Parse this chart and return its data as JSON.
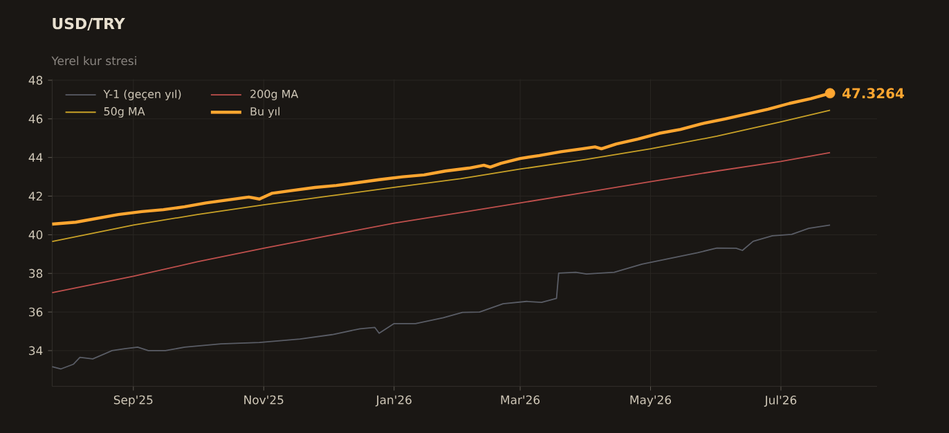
{
  "chart_data": {
    "type": "line",
    "title": "USD/TRY",
    "subtitle": "Yerel kur stresi",
    "xlim": [
      "2025-07-25",
      "2026-08-15"
    ],
    "ylim": [
      32.15,
      48.05
    ],
    "xticks": [
      {
        "value": "2025-09-01",
        "label": "Sep'25"
      },
      {
        "value": "2025-11-01",
        "label": "Nov'25"
      },
      {
        "value": "2026-01-01",
        "label": "Jan'26"
      },
      {
        "value": "2026-03-01",
        "label": "Mar'26"
      },
      {
        "value": "2026-05-01",
        "label": "May'26"
      },
      {
        "value": "2026-07-01",
        "label": "Jul'26"
      }
    ],
    "yticks": [
      34,
      36,
      38,
      40,
      42,
      44,
      46,
      48
    ],
    "grid": true,
    "legend": "top left",
    "annotations": [
      {
        "text": "47.3264",
        "x": "2026-07-24",
        "y": 47.3264
      }
    ],
    "series": [
      {
        "name": "Y-1 (geçen yıl)",
        "color": "#5a5d66",
        "x": [
          "2025-07-25",
          "2025-07-29",
          "2025-08-04",
          "2025-08-07",
          "2025-08-13",
          "2025-08-22",
          "2025-08-28",
          "2025-09-03",
          "2025-09-08",
          "2025-09-16",
          "2025-09-25",
          "2025-10-12",
          "2025-10-30",
          "2025-11-18",
          "2025-12-03",
          "2025-12-16",
          "2025-12-23",
          "2025-12-25",
          "2026-01-01",
          "2026-01-11",
          "2026-01-24",
          "2026-02-02",
          "2026-02-10",
          "2026-02-21",
          "2026-03-04",
          "2026-03-11",
          "2026-03-18",
          "2026-03-19",
          "2026-03-27",
          "2026-04-01",
          "2026-04-14",
          "2026-04-27",
          "2026-05-10",
          "2026-05-23",
          "2026-06-01",
          "2026-06-10",
          "2026-06-13",
          "2026-06-18",
          "2026-06-27",
          "2026-07-06",
          "2026-07-14",
          "2026-07-24"
        ],
        "values": [
          33.17,
          33.05,
          33.3,
          33.65,
          33.57,
          34.0,
          34.1,
          34.18,
          34.0,
          34.0,
          34.18,
          34.35,
          34.42,
          34.6,
          34.83,
          35.13,
          35.2,
          34.9,
          35.4,
          35.4,
          35.7,
          35.98,
          36.0,
          36.43,
          36.55,
          36.5,
          36.71,
          38.01,
          38.06,
          37.97,
          38.06,
          38.48,
          38.77,
          39.07,
          39.31,
          39.3,
          39.19,
          39.66,
          39.95,
          40.02,
          40.33,
          40.5
        ]
      },
      {
        "name": "200g MA",
        "color": "#c0504d",
        "x": [
          "2025-07-25",
          "2025-09-01",
          "2025-10-01",
          "2025-11-01",
          "2025-12-01",
          "2026-01-01",
          "2026-02-01",
          "2026-03-01",
          "2026-04-01",
          "2026-05-01",
          "2026-06-01",
          "2026-07-01",
          "2026-07-24"
        ],
        "values": [
          37.0,
          37.85,
          38.6,
          39.3,
          39.95,
          40.6,
          41.15,
          41.65,
          42.2,
          42.75,
          43.3,
          43.8,
          44.25
        ]
      },
      {
        "name": "50g MA",
        "color": "#c9a227",
        "x": [
          "2025-07-25",
          "2025-09-01",
          "2025-10-01",
          "2025-11-01",
          "2025-12-01",
          "2026-01-01",
          "2026-02-01",
          "2026-03-01",
          "2026-04-01",
          "2026-05-01",
          "2026-06-01",
          "2026-07-01",
          "2026-07-24"
        ],
        "values": [
          39.65,
          40.5,
          41.05,
          41.55,
          42.0,
          42.45,
          42.9,
          43.4,
          43.9,
          44.45,
          45.1,
          45.85,
          46.45
        ]
      },
      {
        "name": "Bu yıl",
        "color": "#ffa630",
        "x": [
          "2025-07-25",
          "2025-08-05",
          "2025-08-15",
          "2025-08-25",
          "2025-09-05",
          "2025-09-15",
          "2025-09-25",
          "2025-10-05",
          "2025-10-15",
          "2025-10-25",
          "2025-10-30",
          "2025-11-05",
          "2025-11-15",
          "2025-11-25",
          "2025-12-05",
          "2025-12-15",
          "2025-12-25",
          "2026-01-05",
          "2026-01-15",
          "2026-01-25",
          "2026-02-05",
          "2026-02-12",
          "2026-02-15",
          "2026-02-20",
          "2026-03-01",
          "2026-03-10",
          "2026-03-20",
          "2026-03-30",
          "2026-04-05",
          "2026-04-08",
          "2026-04-15",
          "2026-04-25",
          "2026-05-05",
          "2026-05-15",
          "2026-05-25",
          "2026-06-05",
          "2026-06-15",
          "2026-06-25",
          "2026-07-05",
          "2026-07-15",
          "2026-07-24"
        ],
        "values": [
          40.55,
          40.65,
          40.85,
          41.05,
          41.2,
          41.3,
          41.45,
          41.65,
          41.8,
          41.95,
          41.85,
          42.15,
          42.3,
          42.45,
          42.55,
          42.7,
          42.85,
          43.0,
          43.1,
          43.3,
          43.45,
          43.6,
          43.5,
          43.7,
          43.95,
          44.1,
          44.3,
          44.45,
          44.55,
          44.45,
          44.7,
          44.95,
          45.25,
          45.45,
          45.75,
          46.0,
          46.25,
          46.5,
          46.8,
          47.05,
          47.3264
        ]
      }
    ]
  }
}
